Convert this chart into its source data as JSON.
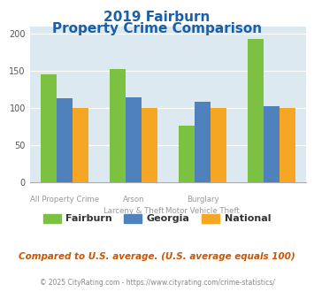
{
  "title_line1": "2019 Fairburn",
  "title_line2": "Property Crime Comparison",
  "groups": {
    "Fairburn": [
      146,
      153,
      77,
      193
    ],
    "Georgia": [
      113,
      114,
      109,
      102
    ],
    "National": [
      100,
      100,
      100,
      100
    ]
  },
  "top_labels": [
    "All Property Crime",
    "Arson",
    "Burglary",
    ""
  ],
  "bottom_labels": [
    "",
    "Larceny & Theft",
    "Motor Vehicle Theft",
    ""
  ],
  "colors": {
    "Fairburn": "#7dc142",
    "Georgia": "#4f81bd",
    "National": "#f5a623"
  },
  "ylim": [
    0,
    210
  ],
  "yticks": [
    0,
    50,
    100,
    150,
    200
  ],
  "plot_bg": "#dce9f0",
  "title_color": "#1a5fa8",
  "subtitle_note": "Compared to U.S. average. (U.S. average equals 100)",
  "footer": "© 2025 CityRating.com - https://www.cityrating.com/crime-statistics/",
  "subtitle_color": "#cc5500",
  "footer_color": "#888888"
}
